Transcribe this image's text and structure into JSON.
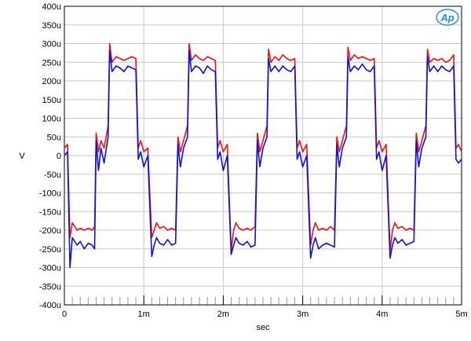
{
  "chart_data": {
    "type": "line",
    "title": "",
    "xlabel": "sec",
    "ylabel": "V",
    "xlim": [
      0,
      0.005
    ],
    "ylim": [
      -0.0004,
      0.0004
    ],
    "x_ticks": [
      {
        "value": 0,
        "label": "0"
      },
      {
        "value": 0.001,
        "label": "1m"
      },
      {
        "value": 0.002,
        "label": "2m"
      },
      {
        "value": 0.003,
        "label": "3m"
      },
      {
        "value": 0.004,
        "label": "4m"
      },
      {
        "value": 0.005,
        "label": "5m"
      }
    ],
    "y_ticks": [
      {
        "value": 0.0004,
        "label": "400u"
      },
      {
        "value": 0.00035,
        "label": "350u"
      },
      {
        "value": 0.0003,
        "label": "300u"
      },
      {
        "value": 0.00025,
        "label": "250u"
      },
      {
        "value": 0.0002,
        "label": "200u"
      },
      {
        "value": 0.00015,
        "label": "150u"
      },
      {
        "value": 0.0001,
        "label": "100u"
      },
      {
        "value": 5e-05,
        "label": "50u"
      },
      {
        "value": 0,
        "label": "0"
      },
      {
        "value": -5e-05,
        "label": "-50u"
      },
      {
        "value": -0.0001,
        "label": "-100u"
      },
      {
        "value": -0.00015,
        "label": "-150u"
      },
      {
        "value": -0.0002,
        "label": "-200u"
      },
      {
        "value": -0.00025,
        "label": "-250u"
      },
      {
        "value": -0.0003,
        "label": "-300u"
      },
      {
        "value": -0.00035,
        "label": "-350u"
      },
      {
        "value": -0.0004,
        "label": "-400u"
      }
    ],
    "grid": true,
    "logo": "Ap",
    "series": [
      {
        "color": "#ee1111",
        "x": [
          0,
          4e-05,
          7e-05,
          0.0001,
          0.00016,
          0.0002,
          0.00025,
          0.0003,
          0.00035,
          0.00038,
          0.0004,
          0.00043,
          0.00046,
          0.0005,
          0.00055,
          0.00057,
          0.0006,
          0.00065,
          0.0007,
          0.00075,
          0.0008,
          0.00085,
          0.0009,
          0.00093,
          0.00096,
          0.001,
          0.00105,
          0.0011,
          0.00113,
          0.00116,
          0.0012,
          0.00125,
          0.0013,
          0.00135,
          0.0014,
          0.00143,
          0.00146,
          0.0015,
          0.00155,
          0.00157,
          0.0016,
          0.00165,
          0.0017,
          0.00175,
          0.0018,
          0.00185,
          0.0019,
          0.00193,
          0.00196,
          0.002,
          0.00205,
          0.0021,
          0.00213,
          0.00216,
          0.0022,
          0.00225,
          0.0023,
          0.00235,
          0.0024,
          0.00243,
          0.00246,
          0.0025,
          0.00255,
          0.00257,
          0.0026,
          0.00265,
          0.0027,
          0.00275,
          0.0028,
          0.00285,
          0.0029,
          0.00293,
          0.00296,
          0.003,
          0.00305,
          0.0031,
          0.00313,
          0.00316,
          0.0032,
          0.00325,
          0.0033,
          0.00335,
          0.0034,
          0.00343,
          0.00346,
          0.0035,
          0.00355,
          0.00357,
          0.0036,
          0.00365,
          0.0037,
          0.00375,
          0.0038,
          0.00385,
          0.0039,
          0.00393,
          0.00396,
          0.004,
          0.00405,
          0.0041,
          0.00413,
          0.00416,
          0.0042,
          0.00425,
          0.0043,
          0.00435,
          0.0044,
          0.00443,
          0.00446,
          0.0045,
          0.00455,
          0.00457,
          0.0046,
          0.00465,
          0.0047,
          0.00475,
          0.0048,
          0.00485,
          0.0049,
          0.00493,
          0.00496,
          0.005
        ],
        "y": [
          2e-05,
          3e-05,
          -0.00022,
          -0.00018,
          -0.0002,
          -0.000195,
          -0.0002,
          -0.000195,
          -0.0002,
          -0.00019,
          6e-05,
          1e-05,
          4e-05,
          2e-05,
          8e-05,
          0.0003,
          0.00025,
          0.000265,
          0.00026,
          0.000255,
          0.00026,
          0.000265,
          0.00026,
          2e-05,
          4e-05,
          1e-05,
          2e-05,
          -0.00022,
          -0.0002,
          -0.00018,
          -0.000195,
          -0.00019,
          -0.0002,
          -0.000195,
          -0.0002,
          5e-05,
          1e-05,
          4e-05,
          8e-05,
          0.0003,
          0.000255,
          0.00027,
          0.00026,
          0.000255,
          0.000265,
          0.00026,
          0.000255,
          2e-05,
          4e-05,
          1e-05,
          3e-05,
          -0.000255,
          -0.0002,
          -0.00018,
          -0.000195,
          -0.0002,
          -0.000195,
          -0.0002,
          -0.00019,
          6e-05,
          1e-05,
          4e-05,
          8e-05,
          0.000285,
          0.00025,
          0.000265,
          0.000255,
          0.00027,
          0.00026,
          0.000255,
          0.00026,
          2e-05,
          4e-05,
          1e-05,
          3e-05,
          -0.00024,
          -0.0002,
          -0.00018,
          -0.0002,
          -0.000195,
          -0.0002,
          -0.00019,
          -0.0002,
          5e-05,
          1e-05,
          4e-05,
          8e-05,
          0.00029,
          0.000255,
          0.00027,
          0.00026,
          0.000265,
          0.00026,
          0.000255,
          0.00026,
          2e-05,
          4e-05,
          1e-05,
          3e-05,
          -0.000255,
          -0.0002,
          -0.00018,
          -0.000195,
          -0.00019,
          -0.0002,
          -0.000195,
          -0.0002,
          6e-05,
          1e-05,
          4e-05,
          8e-05,
          0.000285,
          0.00025,
          0.00026,
          0.000255,
          0.00026,
          0.00025,
          0.000255,
          0.00027,
          2e-05,
          3e-05,
          1e-05
        ]
      },
      {
        "color": "#1010dd",
        "x": [
          0,
          4e-05,
          7e-05,
          0.0001,
          0.00016,
          0.0002,
          0.00025,
          0.0003,
          0.00035,
          0.00038,
          0.0004,
          0.00043,
          0.00046,
          0.0005,
          0.00055,
          0.00057,
          0.0006,
          0.00065,
          0.0007,
          0.00075,
          0.0008,
          0.00085,
          0.0009,
          0.00093,
          0.00096,
          0.001,
          0.00105,
          0.0011,
          0.00113,
          0.00116,
          0.0012,
          0.00125,
          0.0013,
          0.00135,
          0.0014,
          0.00143,
          0.00146,
          0.0015,
          0.00155,
          0.00157,
          0.0016,
          0.00165,
          0.0017,
          0.00175,
          0.0018,
          0.00185,
          0.0019,
          0.00193,
          0.00196,
          0.002,
          0.00205,
          0.0021,
          0.00213,
          0.00216,
          0.0022,
          0.00225,
          0.0023,
          0.00235,
          0.0024,
          0.00243,
          0.00246,
          0.0025,
          0.00255,
          0.00257,
          0.0026,
          0.00265,
          0.0027,
          0.00275,
          0.0028,
          0.00285,
          0.0029,
          0.00293,
          0.00296,
          0.003,
          0.00305,
          0.0031,
          0.00313,
          0.00316,
          0.0032,
          0.00325,
          0.0033,
          0.00335,
          0.0034,
          0.00343,
          0.00346,
          0.0035,
          0.00355,
          0.00357,
          0.0036,
          0.00365,
          0.0037,
          0.00375,
          0.0038,
          0.00385,
          0.0039,
          0.00393,
          0.00396,
          0.004,
          0.00405,
          0.0041,
          0.00413,
          0.00416,
          0.0042,
          0.00425,
          0.0043,
          0.00435,
          0.0044,
          0.00443,
          0.00446,
          0.0045,
          0.00455,
          0.00457,
          0.0046,
          0.00465,
          0.0047,
          0.00475,
          0.0048,
          0.00485,
          0.0049,
          0.00493,
          0.00496,
          0.005
        ],
        "y": [
          0,
          1e-05,
          -0.0003,
          -0.00022,
          -0.00024,
          -0.00023,
          -0.00025,
          -0.000235,
          -0.00024,
          -0.00025,
          4e-05,
          -4e-05,
          2e-05,
          -2e-05,
          5e-05,
          0.00028,
          0.000225,
          0.00024,
          0.000235,
          0.000225,
          0.00024,
          0.000235,
          0.00023,
          -1e-05,
          1e-05,
          -3e-05,
          0,
          -0.00027,
          -0.00024,
          -0.00022,
          -0.000235,
          -0.00024,
          -0.000225,
          -0.00024,
          -0.000235,
          3e-05,
          -3e-05,
          2e-05,
          5e-05,
          0.00028,
          0.000225,
          0.00024,
          0.000235,
          0.00022,
          0.00024,
          0.00023,
          0.000225,
          -1e-05,
          1e-05,
          -4e-05,
          0,
          -0.000265,
          -0.00024,
          -0.00022,
          -0.000235,
          -0.00024,
          -0.00023,
          -0.000245,
          -0.00024,
          4e-05,
          -3e-05,
          2e-05,
          5e-05,
          0.00026,
          0.000225,
          0.00024,
          0.000225,
          0.00024,
          0.00023,
          0.000225,
          0.00024,
          -1e-05,
          1e-05,
          -3e-05,
          0,
          -0.000275,
          -0.00024,
          -0.00022,
          -0.00025,
          -0.00024,
          -0.000235,
          -0.00024,
          -0.000245,
          3e-05,
          -3e-05,
          2e-05,
          5e-05,
          0.000265,
          0.000225,
          0.00024,
          0.00023,
          0.000245,
          0.00023,
          0.000225,
          0.00024,
          -1e-05,
          1e-05,
          -4e-05,
          0,
          -0.000275,
          -0.00024,
          -0.00022,
          -0.000235,
          -0.000225,
          -0.00024,
          -0.000235,
          -0.00023,
          4e-05,
          -3e-05,
          2e-05,
          5e-05,
          0.000265,
          0.000225,
          0.00024,
          0.000225,
          0.00024,
          0.00023,
          0.000225,
          0.00024,
          -1e-05,
          -2e-05,
          -1e-05
        ]
      }
    ]
  }
}
